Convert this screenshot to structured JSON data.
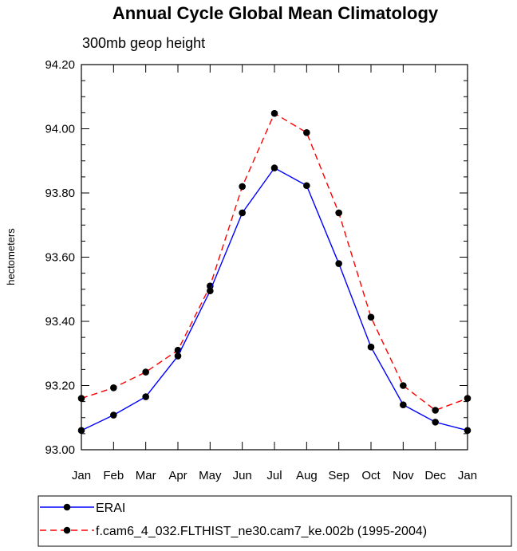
{
  "chart_data": {
    "type": "line",
    "title": "Annual Cycle Global Mean Climatology",
    "subtitle": "300mb geop height",
    "xlabel": "",
    "ylabel": "hectometers",
    "categories": [
      "Jan",
      "Feb",
      "Mar",
      "Apr",
      "May",
      "Jun",
      "Jul",
      "Aug",
      "Sep",
      "Oct",
      "Nov",
      "Dec",
      "Jan"
    ],
    "ylim": [
      93.0,
      94.2
    ],
    "yticks": [
      "93.00",
      "93.20",
      "93.40",
      "93.60",
      "93.80",
      "94.00",
      "94.20"
    ],
    "grid": false,
    "legend_position": "bottom",
    "series": [
      {
        "name": "ERAI",
        "color": "#0000ff",
        "dash": "solid",
        "values": [
          93.06,
          93.108,
          93.165,
          93.292,
          93.495,
          93.738,
          93.878,
          93.823,
          93.58,
          93.32,
          93.14,
          93.086,
          93.06
        ]
      },
      {
        "name": "f.cam6_4_032.FLTHIST_ne30.cam7_ke.002b (1995-2004)",
        "color": "#ff0000",
        "dash": "dashed",
        "values": [
          93.16,
          93.193,
          93.242,
          93.31,
          93.51,
          93.82,
          94.048,
          93.988,
          93.738,
          93.413,
          93.2,
          93.123,
          93.16
        ]
      }
    ]
  }
}
